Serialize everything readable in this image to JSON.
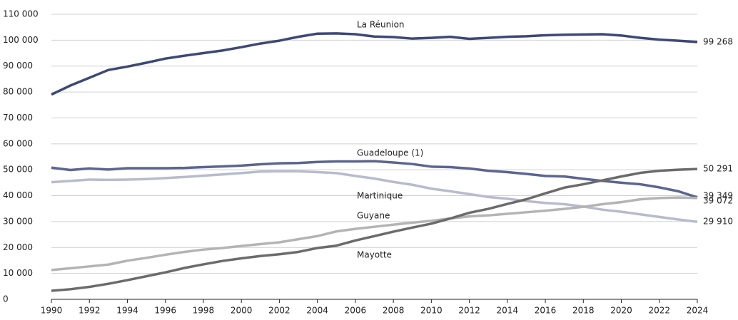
{
  "chart_data": {
    "type": "line",
    "x": [
      1990,
      1991,
      1992,
      1993,
      1994,
      1995,
      1996,
      1997,
      1998,
      1999,
      2000,
      2001,
      2002,
      2003,
      2004,
      2005,
      2006,
      2007,
      2008,
      2009,
      2010,
      2011,
      2012,
      2013,
      2014,
      2015,
      2016,
      2017,
      2018,
      2019,
      2020,
      2021,
      2022,
      2023,
      2024
    ],
    "xlim": [
      1990,
      2024
    ],
    "xticks": [
      1990,
      1992,
      1994,
      1996,
      1998,
      2000,
      2002,
      2004,
      2006,
      2008,
      2010,
      2012,
      2014,
      2016,
      2018,
      2020,
      2022,
      2024
    ],
    "ylim": [
      0,
      110000
    ],
    "yticks": [
      {
        "value": 0,
        "label": "0"
      },
      {
        "value": 10000,
        "label": "10 000"
      },
      {
        "value": 20000,
        "label": "20 000"
      },
      {
        "value": 30000,
        "label": "30 000"
      },
      {
        "value": 40000,
        "label": "40 000"
      },
      {
        "value": 50000,
        "label": "50 000"
      },
      {
        "value": 60000,
        "label": "60 000"
      },
      {
        "value": 70000,
        "label": "70 000"
      },
      {
        "value": 80000,
        "label": "80 000"
      },
      {
        "value": 90000,
        "label": "90 000"
      },
      {
        "value": 100000,
        "label": "100 000"
      },
      {
        "value": 110000,
        "label": "110 000"
      }
    ],
    "grid": true,
    "series": [
      {
        "name": "La Réunion",
        "color": "#3d4878",
        "values": [
          79000,
          82500,
          85500,
          88500,
          89800,
          91300,
          92900,
          94000,
          95000,
          96000,
          97300,
          98700,
          99800,
          101300,
          102500,
          102600,
          102300,
          101400,
          101200,
          100600,
          100900,
          101300,
          100500,
          100900,
          101300,
          101500,
          101900,
          102100,
          102200,
          102300,
          101800,
          100900,
          100200,
          99800,
          99268
        ],
        "value_labels": [
          null,
          null,
          null,
          null,
          null,
          null,
          null,
          null,
          null,
          null,
          null,
          null,
          null,
          null,
          null,
          null,
          null,
          null,
          null,
          null,
          null,
          null,
          null,
          null,
          null,
          null,
          null,
          null,
          null,
          null,
          null,
          null,
          null,
          null,
          "99 268"
        ]
      },
      {
        "name": "Guadeloupe (1)",
        "color": "#5c6590",
        "values": [
          50800,
          49900,
          50500,
          50100,
          50600,
          50600,
          50600,
          50700,
          51000,
          51300,
          51600,
          52100,
          52500,
          52600,
          53000,
          53200,
          53200,
          53300,
          52800,
          52200,
          51200,
          51000,
          50500,
          49600,
          49100,
          48400,
          47600,
          47400,
          46500,
          45700,
          45000,
          44400,
          43200,
          41700,
          39349
        ],
        "value_labels": [
          null,
          null,
          null,
          null,
          null,
          null,
          null,
          null,
          null,
          null,
          null,
          null,
          null,
          null,
          null,
          null,
          null,
          null,
          null,
          null,
          null,
          null,
          null,
          null,
          null,
          null,
          null,
          null,
          null,
          null,
          null,
          null,
          null,
          null,
          "39 349"
        ]
      },
      {
        "name": "Martinique",
        "color": "#b7bccd",
        "values": [
          45200,
          45700,
          46200,
          46100,
          46200,
          46400,
          46800,
          47200,
          47700,
          48200,
          48700,
          49300,
          49400,
          49400,
          49100,
          48700,
          47600,
          46600,
          45300,
          44200,
          42700,
          41700,
          40600,
          39500,
          38800,
          37900,
          37200,
          36700,
          35800,
          34600,
          33800,
          32800,
          31800,
          30800,
          29910
        ],
        "value_labels": [
          null,
          null,
          null,
          null,
          null,
          null,
          null,
          null,
          null,
          null,
          null,
          null,
          null,
          null,
          null,
          null,
          null,
          null,
          null,
          null,
          null,
          null,
          null,
          null,
          null,
          null,
          null,
          null,
          null,
          null,
          null,
          null,
          null,
          null,
          "29 910"
        ]
      },
      {
        "name": "Guyane",
        "color": "#b4b4b4",
        "values": [
          11300,
          12000,
          12700,
          13400,
          14900,
          16000,
          17200,
          18300,
          19200,
          19800,
          20600,
          21300,
          22000,
          23200,
          24400,
          26200,
          27200,
          28000,
          28800,
          29600,
          30300,
          31200,
          32000,
          32400,
          33000,
          33600,
          34200,
          34900,
          35700,
          36700,
          37500,
          38600,
          39100,
          39300,
          39072
        ],
        "value_labels": [
          null,
          null,
          null,
          null,
          null,
          null,
          null,
          null,
          null,
          null,
          null,
          null,
          null,
          null,
          null,
          null,
          null,
          null,
          null,
          null,
          null,
          null,
          null,
          null,
          null,
          null,
          null,
          null,
          null,
          null,
          null,
          null,
          null,
          null,
          "39 072"
        ]
      },
      {
        "name": "Mayotte",
        "color": "#6b6b6b",
        "values": [
          3300,
          3900,
          4800,
          6000,
          7400,
          8900,
          10400,
          12100,
          13500,
          14800,
          15800,
          16700,
          17400,
          18300,
          19800,
          20700,
          22700,
          24400,
          26100,
          27700,
          29200,
          31200,
          33400,
          34900,
          36800,
          38600,
          40900,
          43100,
          44400,
          45900,
          47400,
          48800,
          49600,
          50000,
          50291
        ],
        "value_labels": [
          null,
          null,
          null,
          null,
          null,
          null,
          null,
          null,
          null,
          null,
          null,
          null,
          null,
          null,
          null,
          null,
          null,
          null,
          null,
          null,
          null,
          null,
          null,
          null,
          null,
          null,
          null,
          null,
          null,
          null,
          null,
          null,
          null,
          null,
          "50 291"
        ]
      }
    ]
  }
}
